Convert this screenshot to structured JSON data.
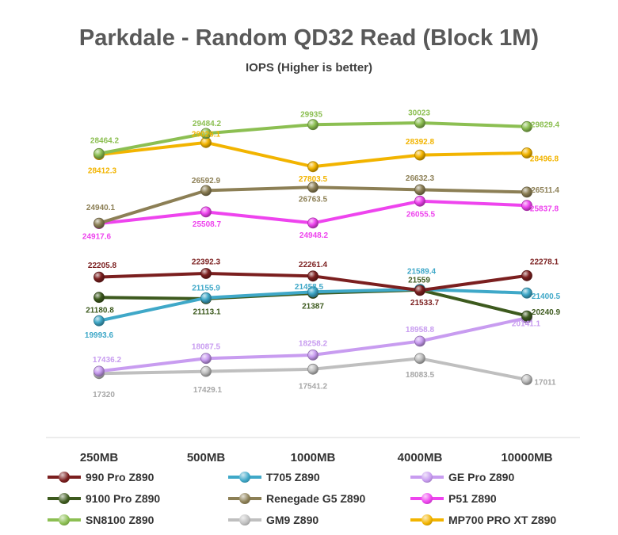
{
  "title": "Parkdale - Random QD32 Read (Block 1M)",
  "subtitle": "IOPS (Higher is better)",
  "chart_data": {
    "type": "line",
    "title": "Parkdale - Random QD32 Read (Block 1M)",
    "subtitle": "IOPS (Higher is better)",
    "categories": [
      "250MB",
      "500MB",
      "1000MB",
      "4000MB",
      "10000MB"
    ],
    "ylim": [
      16000,
      31000
    ],
    "grid": false,
    "legend_position": "bottom",
    "series": [
      {
        "name": "990 Pro Z890",
        "color": "#7b1f1f",
        "values": [
          22205.8,
          22392.3,
          22261.4,
          21533.7,
          22278.1
        ],
        "labels": [
          "22205.8",
          "22392.3",
          "22261.4",
          "21533.7",
          "22278.1"
        ]
      },
      {
        "name": "T705 Z890",
        "color": "#3fa8c8",
        "values": [
          19993.6,
          21155.9,
          21458.5,
          21589.4,
          21400.5
        ],
        "labels": [
          "19993.6",
          "21155.9",
          "21458.5",
          "21589.4",
          "21400.5"
        ]
      },
      {
        "name": "GE Pro Z890",
        "color": "#c89cf0",
        "values": [
          17436.2,
          18087.5,
          18258.2,
          18958.8,
          20141.1
        ],
        "labels": [
          "17436.2",
          "18087.5",
          "18258.2",
          "18958.8",
          "20141.1"
        ]
      },
      {
        "name": "9100 Pro Z890",
        "color": "#3d5a1e",
        "values": [
          21180.8,
          21113.1,
          21387,
          21559,
          20240.9
        ],
        "labels": [
          "21180.8",
          "21113.1",
          "21387",
          "21559",
          "20240.9"
        ]
      },
      {
        "name": "Renegade G5 Z890",
        "color": "#8c7f55",
        "values": [
          24940.1,
          26592.9,
          26763.5,
          26632.3,
          26511.4
        ],
        "labels": [
          "24940.1",
          "26592.9",
          "26763.5",
          "26632.3",
          "26511.4"
        ]
      },
      {
        "name": "P51 Z890",
        "color": "#ee44ee",
        "values": [
          24917.6,
          25508.7,
          24948.2,
          26055.5,
          25837.8
        ],
        "labels": [
          "24917.6",
          "25508.7",
          "24948.2",
          "26055.5",
          "25837.8"
        ]
      },
      {
        "name": "SN8100 Z890",
        "color": "#8cbf52",
        "values": [
          28464.2,
          29484.2,
          29935,
          30023,
          29829.4
        ],
        "labels": [
          "28464.2",
          "29484.2",
          "29935",
          "30023",
          "29829.4"
        ]
      },
      {
        "name": "GM9 Z890",
        "color": "#bfbfbf",
        "values": [
          17320,
          17429.1,
          17541.2,
          18083.5,
          17011
        ],
        "labels": [
          "17320",
          "17429.1",
          "17541.2",
          "18083.5",
          "17011"
        ]
      },
      {
        "name": "MP700 PRO XT Z890",
        "color": "#f2b400",
        "values": [
          28412.3,
          29026.1,
          27803.5,
          28392.8,
          28496.8
        ],
        "labels": [
          "28412.3",
          "29026.1",
          "27803.5",
          "28392.8",
          "28496.8"
        ]
      }
    ]
  }
}
